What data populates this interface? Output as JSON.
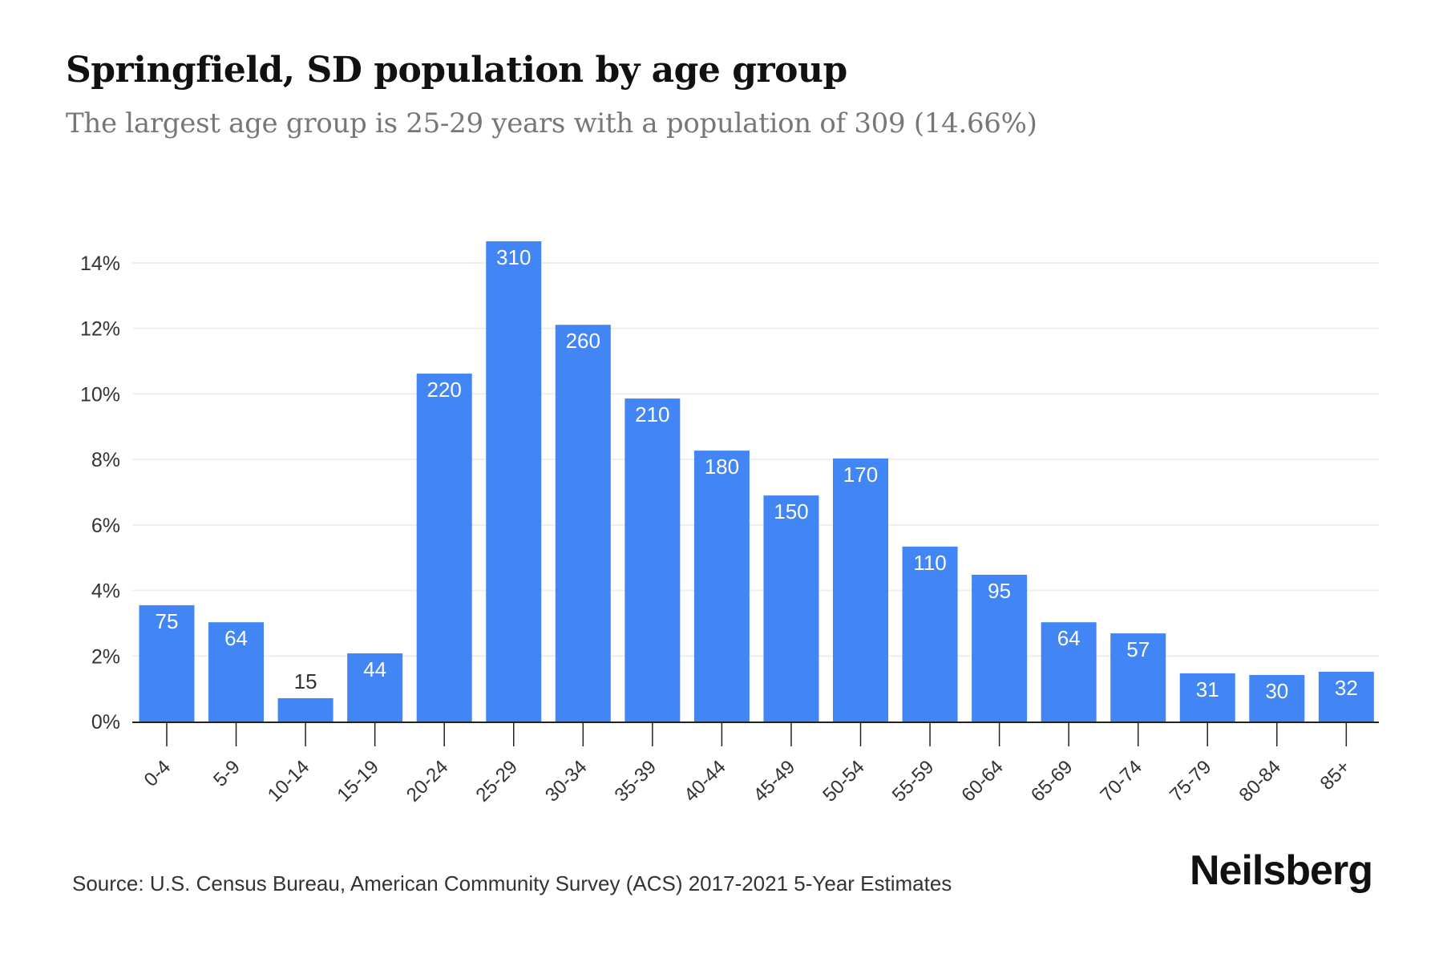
{
  "header": {
    "title": "Springfield, SD population by age group",
    "subtitle": "The largest age group is 25-29 years with a population of 309 (14.66%)"
  },
  "footer": {
    "source": "Source: U.S. Census Bureau, American Community Survey (ACS) 2017-2021 5-Year Estimates",
    "brand": "Neilsberg"
  },
  "colors": {
    "bar": "#4285F4",
    "bar_label_inside": "#ffffff",
    "bar_label_outside": "#333333",
    "grid": "#eeeeee",
    "axis": "#222222"
  },
  "chart_data": {
    "type": "bar",
    "title": "Springfield, SD population by age group",
    "subtitle": "The largest age group is 25-29 years with a population of 309 (14.66%)",
    "xlabel": "",
    "ylabel": "",
    "categories": [
      "0-4",
      "5-9",
      "10-14",
      "15-19",
      "20-24",
      "25-29",
      "30-34",
      "35-39",
      "40-44",
      "45-49",
      "50-54",
      "55-59",
      "60-64",
      "65-69",
      "70-74",
      "75-79",
      "80-84",
      "85+"
    ],
    "values_percent": [
      3.55,
      3.03,
      0.71,
      2.08,
      10.62,
      14.66,
      12.11,
      9.86,
      8.27,
      6.9,
      8.03,
      5.34,
      4.48,
      3.03,
      2.69,
      1.47,
      1.42,
      1.52
    ],
    "data_labels": [
      "75",
      "64",
      "15",
      "44",
      "220",
      "310",
      "260",
      "210",
      "180",
      "150",
      "170",
      "110",
      "95",
      "64",
      "57",
      "31",
      "30",
      "32"
    ],
    "ylim": [
      0,
      14.6
    ],
    "yticks": [
      0,
      2,
      4,
      6,
      8,
      10,
      12,
      14
    ],
    "ytick_labels": [
      "0%",
      "2%",
      "4%",
      "6%",
      "8%",
      "10%",
      "12%",
      "14%"
    ],
    "grid": true,
    "x_label_rotation": "-45deg",
    "legend": "none"
  }
}
